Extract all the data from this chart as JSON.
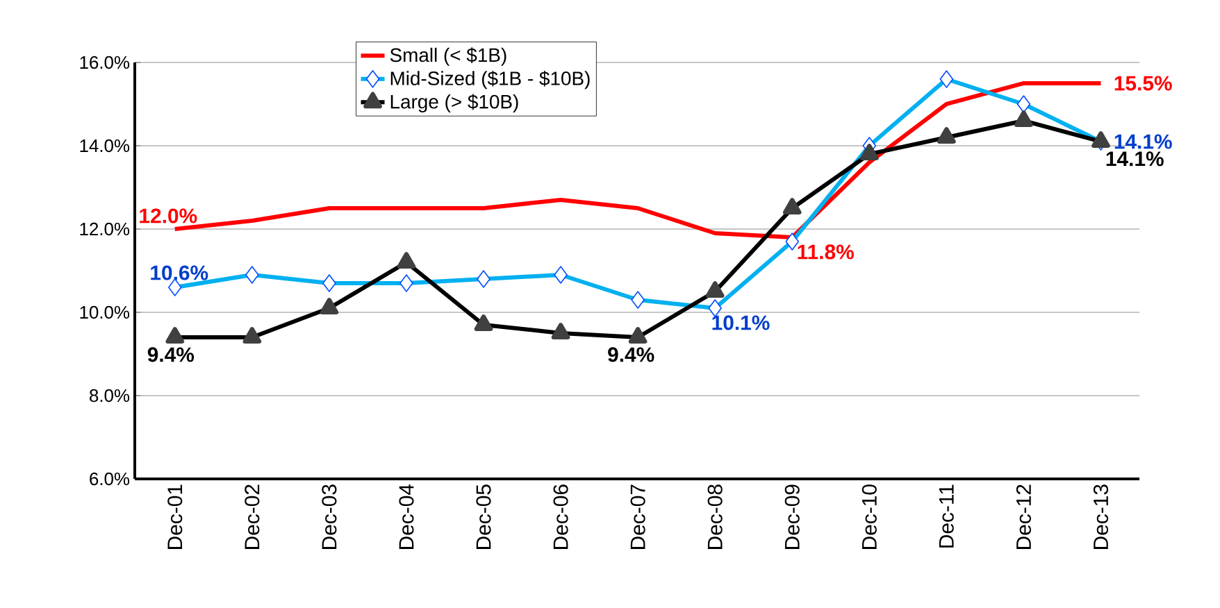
{
  "chart_data": {
    "type": "line",
    "categories": [
      "Dec-01",
      "Dec-02",
      "Dec-03",
      "Dec-04",
      "Dec-05",
      "Dec-06",
      "Dec-07",
      "Dec-08",
      "Dec-09",
      "Dec-10",
      "Dec-11",
      "Dec-12",
      "Dec-13"
    ],
    "series": [
      {
        "name": "Small   (< $1B)",
        "color": "#ff0000",
        "marker": "none",
        "values": [
          12.0,
          12.2,
          12.5,
          12.5,
          12.5,
          12.7,
          12.5,
          11.9,
          11.8,
          13.6,
          15.0,
          15.5,
          15.5
        ],
        "value_labels": [
          "12.0%",
          null,
          null,
          null,
          null,
          null,
          null,
          null,
          "11.8%",
          null,
          null,
          null,
          "15.5%"
        ]
      },
      {
        "name": "Mid-Sized   ($1B - $10B)",
        "color": "#00b0f0",
        "marker": "diamond",
        "values": [
          10.6,
          10.9,
          10.7,
          10.7,
          10.8,
          10.9,
          10.3,
          10.1,
          11.7,
          14.0,
          15.6,
          15.0,
          14.1
        ],
        "value_labels": [
          "10.6%",
          null,
          null,
          null,
          null,
          null,
          null,
          "10.1%",
          null,
          null,
          null,
          null,
          "14.1%"
        ]
      },
      {
        "name": "Large   (> $10B)",
        "color": "#000000",
        "marker": "triangle",
        "values": [
          9.4,
          9.4,
          10.1,
          11.2,
          9.7,
          9.5,
          9.4,
          10.5,
          12.5,
          13.8,
          14.2,
          14.6,
          14.1
        ],
        "value_labels": [
          "9.4%",
          null,
          null,
          null,
          null,
          null,
          "9.4%",
          null,
          null,
          null,
          null,
          null,
          "14.1%"
        ]
      }
    ],
    "ylim": [
      6,
      16
    ],
    "yticks": [
      {
        "value": 6,
        "label": "6.0%"
      },
      {
        "value": 8,
        "label": "8.0%"
      },
      {
        "value": 10,
        "label": "10.0%"
      },
      {
        "value": 12,
        "label": "12.0%"
      },
      {
        "value": 14,
        "label": "14.0%"
      },
      {
        "value": 16,
        "label": "16.0%"
      }
    ],
    "grid": "y",
    "legend": "top",
    "line_style": "solid"
  }
}
